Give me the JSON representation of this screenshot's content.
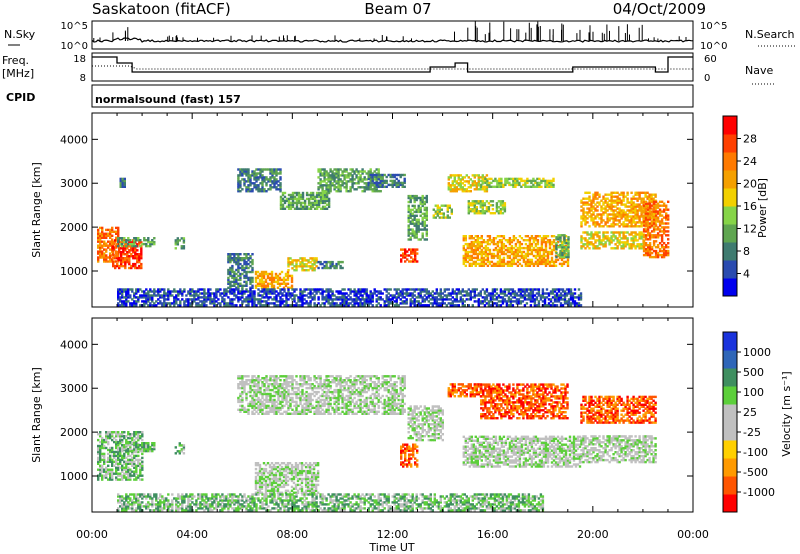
{
  "header": {
    "station": "Saskatoon (fitACF)",
    "beam": "Beam 07",
    "date": "04/Oct/2009"
  },
  "top_panels": {
    "nsky_label": "N.Sky",
    "nsky_ticks": [
      "10^5",
      "10^0"
    ],
    "nsearch_label": "N.Search",
    "nsearch_ticks": [
      "10^5",
      "10^0"
    ],
    "freq_label_1": "Freq.",
    "freq_label_2": "[MHz]",
    "freq_ticks": [
      "18",
      "8"
    ],
    "nave_label": "Nave",
    "nave_ticks": [
      "60",
      "0"
    ],
    "cpid_label": "CPID",
    "cpid_value": "normalsound (fast) 157"
  },
  "colors": {
    "power_scale": [
      "#0000ee",
      "#2a4bb0",
      "#3f7b70",
      "#5fa550",
      "#86d448",
      "#f2d000",
      "#f5a000",
      "#ff7a00",
      "#ff4000",
      "#ff0000"
    ],
    "velocity_scale": [
      "#1a33dd",
      "#2f66b8",
      "#3f8f60",
      "#5ccf3a",
      "#c0c0c0",
      "#c0c0c0",
      "#ffd000",
      "#ff9a00",
      "#ff5500",
      "#ff0000"
    ]
  },
  "chart_data": [
    {
      "type": "heatmap",
      "name": "power",
      "xlabel": "Time UT",
      "ylabel": "Slant Range [km]",
      "xlim_hours": [
        0,
        24
      ],
      "x_tick_labels": [
        "00:00",
        "04:00",
        "08:00",
        "12:00",
        "16:00",
        "20:00",
        "00:00"
      ],
      "ylim": [
        180,
        4600
      ],
      "y_ticks": [
        1000,
        2000,
        3000,
        4000
      ],
      "colorbar_label": "Power [dB]",
      "colorbar_ticks": [
        "4",
        "8",
        "12",
        "16",
        "20",
        "24",
        "28"
      ],
      "regions": [
        {
          "t": [
            0.2,
            1.0
          ],
          "r": [
            1200,
            2000
          ],
          "level": 7
        },
        {
          "t": [
            0.8,
            2.0
          ],
          "r": [
            1050,
            1700
          ],
          "level": 8
        },
        {
          "t": [
            1.0,
            2.5
          ],
          "r": [
            1550,
            1750
          ],
          "level": 3
        },
        {
          "t": [
            3.3,
            3.7
          ],
          "r": [
            1500,
            1750
          ],
          "level": 3
        },
        {
          "t": [
            1.1,
            1.3
          ],
          "r": [
            2900,
            3100
          ],
          "level": 2
        },
        {
          "t": [
            5.4,
            6.4
          ],
          "r": [
            600,
            1400
          ],
          "level": 2
        },
        {
          "t": [
            6.5,
            8.0
          ],
          "r": [
            600,
            1000
          ],
          "level": 6
        },
        {
          "t": [
            7.8,
            9.0
          ],
          "r": [
            1000,
            1300
          ],
          "level": 5
        },
        {
          "t": [
            9.0,
            10.0
          ],
          "r": [
            1050,
            1200
          ],
          "level": 2
        },
        {
          "t": [
            5.8,
            7.5
          ],
          "r": [
            2800,
            3300
          ],
          "level": 2
        },
        {
          "t": [
            7.5,
            9.5
          ],
          "r": [
            2400,
            2800
          ],
          "level": 3
        },
        {
          "t": [
            9.0,
            11.5
          ],
          "r": [
            2800,
            3300
          ],
          "level": 3
        },
        {
          "t": [
            11.0,
            12.5
          ],
          "r": [
            2900,
            3200
          ],
          "level": 2
        },
        {
          "t": [
            12.3,
            13.0
          ],
          "r": [
            1200,
            1500
          ],
          "level": 8
        },
        {
          "t": [
            12.6,
            13.4
          ],
          "r": [
            1700,
            2700
          ],
          "level": 3
        },
        {
          "t": [
            13.6,
            14.4
          ],
          "r": [
            2200,
            2500
          ],
          "level": 4
        },
        {
          "t": [
            14.2,
            15.8
          ],
          "r": [
            2800,
            3200
          ],
          "level": 5
        },
        {
          "t": [
            15.5,
            18.4
          ],
          "r": [
            2900,
            3100
          ],
          "level": 4
        },
        {
          "t": [
            14.8,
            19.0
          ],
          "r": [
            1100,
            1800
          ],
          "level": 6
        },
        {
          "t": [
            15.0,
            16.5
          ],
          "r": [
            2300,
            2600
          ],
          "level": 4
        },
        {
          "t": [
            18.5,
            19.0
          ],
          "r": [
            1300,
            1800
          ],
          "level": 3
        },
        {
          "t": [
            19.5,
            22.5
          ],
          "r": [
            2000,
            2800
          ],
          "level": 6
        },
        {
          "t": [
            19.5,
            22.0
          ],
          "r": [
            1500,
            1900
          ],
          "level": 5
        },
        {
          "t": [
            22.0,
            23.0
          ],
          "r": [
            1300,
            2600
          ],
          "level": 7
        },
        {
          "t": [
            1.0,
            19.5
          ],
          "r": [
            200,
            600
          ],
          "level": 1
        }
      ]
    },
    {
      "type": "heatmap",
      "name": "velocity",
      "xlabel": "Time UT",
      "ylabel": "Slant Range [km]",
      "xlim_hours": [
        0,
        24
      ],
      "x_tick_labels": [
        "00:00",
        "04:00",
        "08:00",
        "12:00",
        "16:00",
        "20:00",
        "00:00"
      ],
      "ylim": [
        180,
        4600
      ],
      "y_ticks": [
        1000,
        2000,
        3000,
        4000
      ],
      "colorbar_label": "Velocity [m s⁻¹]",
      "colorbar_ticks": [
        "1000",
        "500",
        "100",
        "25",
        "-25",
        "-100",
        "-500",
        "-1000"
      ],
      "regions": [
        {
          "t": [
            0.2,
            2.0
          ],
          "r": [
            900,
            2000
          ],
          "level": 3
        },
        {
          "t": [
            1.0,
            2.5
          ],
          "r": [
            1550,
            1750
          ],
          "level": 3
        },
        {
          "t": [
            3.3,
            3.7
          ],
          "r": [
            1500,
            1750
          ],
          "level": 3
        },
        {
          "t": [
            6.5,
            9.0
          ],
          "r": [
            600,
            1300
          ],
          "level": 4
        },
        {
          "t": [
            5.8,
            12.5
          ],
          "r": [
            2400,
            3300
          ],
          "level": 4
        },
        {
          "t": [
            12.3,
            13.0
          ],
          "r": [
            1200,
            1700
          ],
          "level": 8
        },
        {
          "t": [
            12.6,
            14.0
          ],
          "r": [
            1800,
            2600
          ],
          "level": 4
        },
        {
          "t": [
            14.2,
            15.5
          ],
          "r": [
            2800,
            3100
          ],
          "level": 8
        },
        {
          "t": [
            15.5,
            19.0
          ],
          "r": [
            2300,
            3100
          ],
          "level": 8
        },
        {
          "t": [
            14.8,
            19.5
          ],
          "r": [
            1200,
            1900
          ],
          "level": 4
        },
        {
          "t": [
            19.5,
            22.5
          ],
          "r": [
            2200,
            2800
          ],
          "level": 8
        },
        {
          "t": [
            19.5,
            22.5
          ],
          "r": [
            1300,
            1900
          ],
          "level": 4
        },
        {
          "t": [
            1.0,
            18.0
          ],
          "r": [
            200,
            600
          ],
          "level": 3
        }
      ]
    }
  ]
}
